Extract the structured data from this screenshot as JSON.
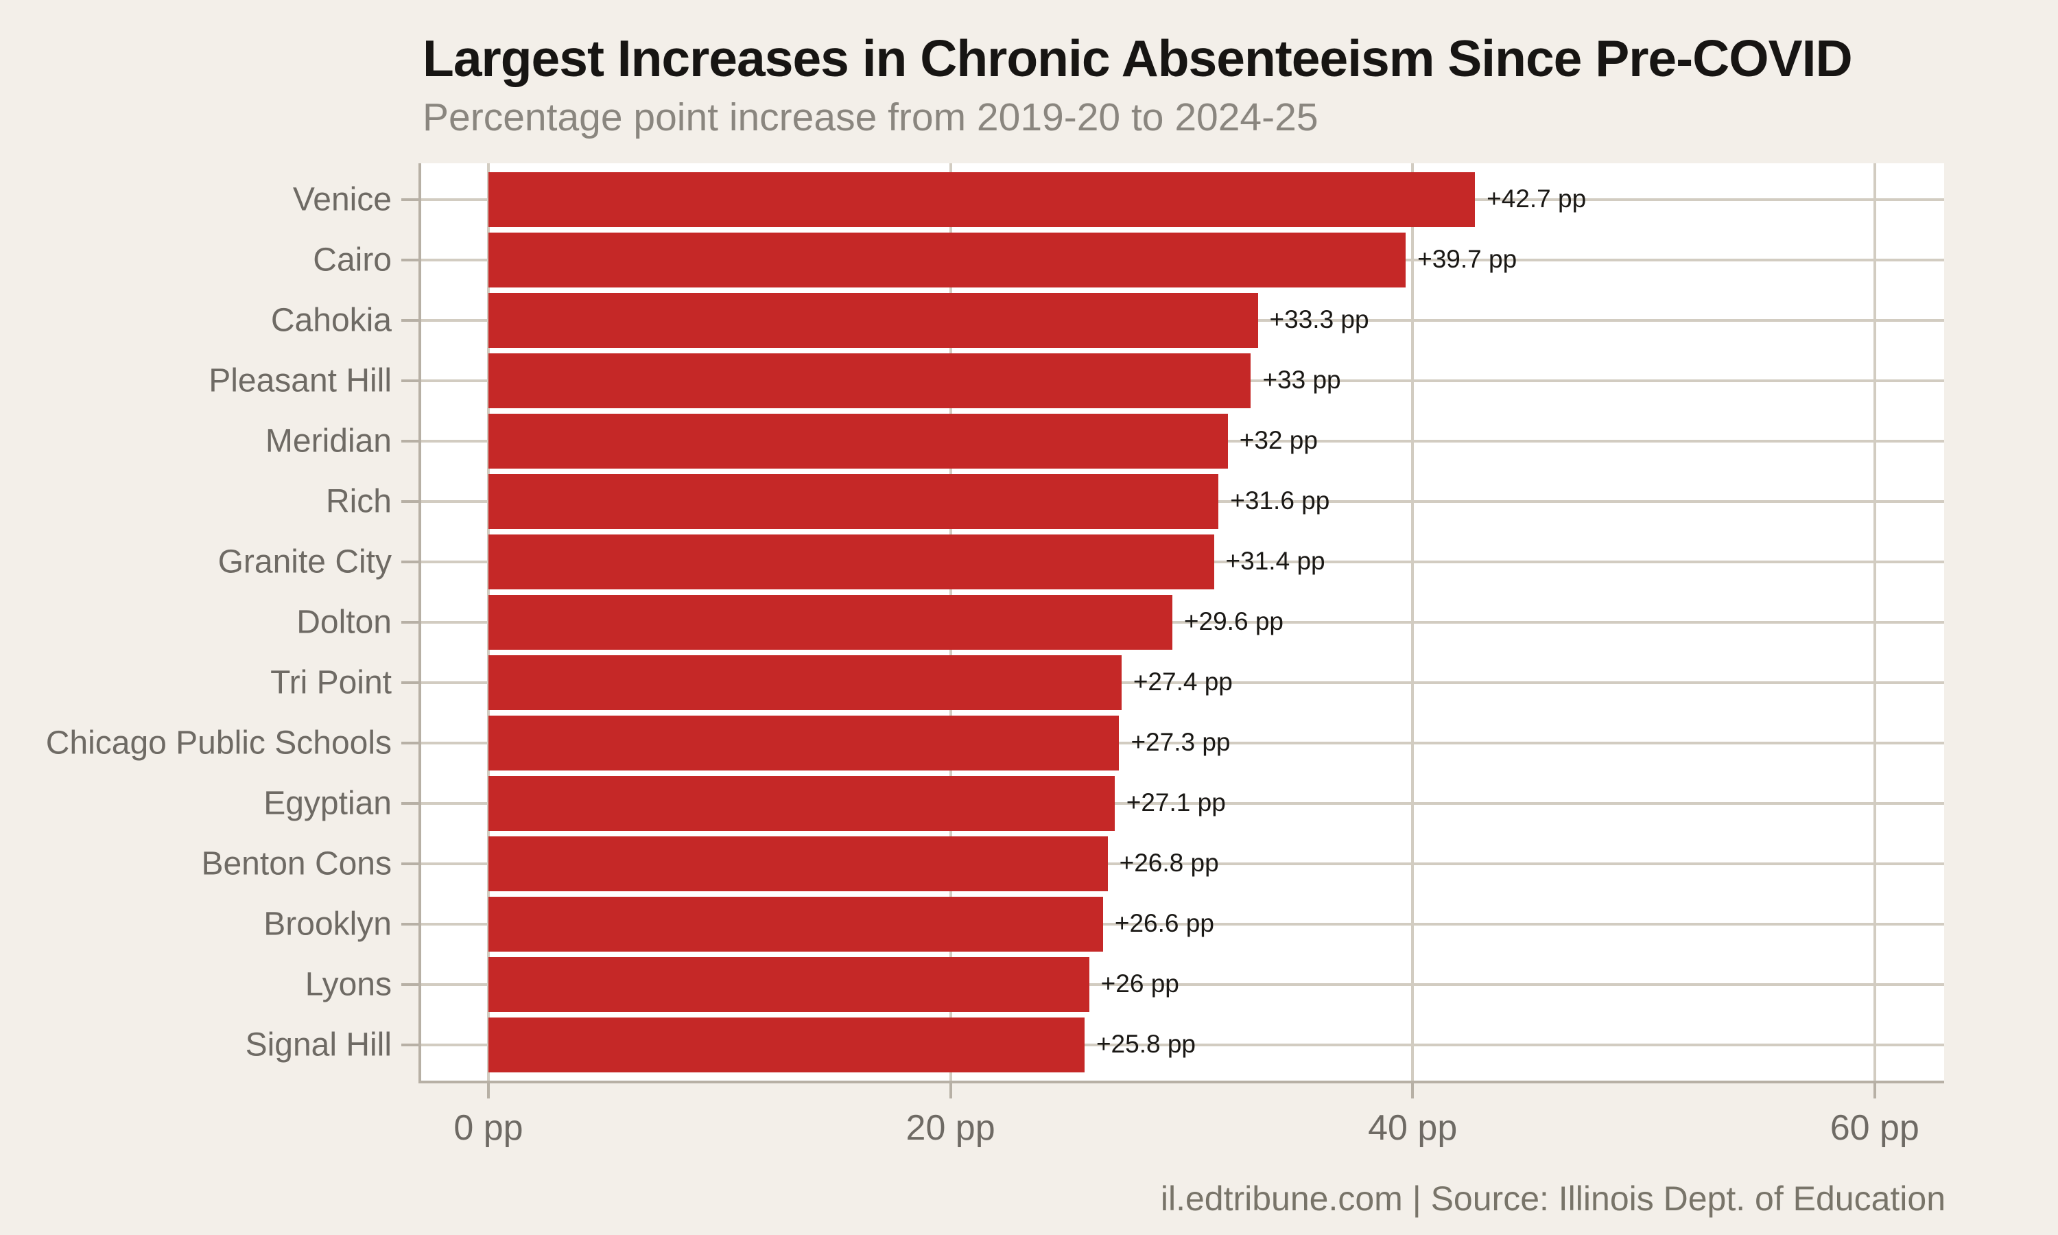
{
  "page": {
    "title": "Largest Increases in Chronic Absenteeism Since Pre-COVID",
    "subtitle": "Percentage point increase from 2019-20 to 2024-25",
    "footer_credit": "il.edtribune.com | Source: Illinois Dept. of Education"
  },
  "chart_data": {
    "type": "bar",
    "orientation": "horizontal",
    "title": "Largest Increases in Chronic Absenteeism Since Pre-COVID",
    "subtitle": "Percentage point increase from 2019-20 to 2024-25",
    "xlabel": "",
    "ylabel": "",
    "categories": [
      "Venice",
      "Cairo",
      "Cahokia",
      "Pleasant Hill",
      "Meridian",
      "Rich",
      "Granite City",
      "Dolton",
      "Tri Point",
      "Chicago Public Schools",
      "Egyptian",
      "Benton Cons",
      "Brooklyn",
      "Lyons",
      "Signal Hill"
    ],
    "values": [
      42.7,
      39.7,
      33.3,
      33,
      32,
      31.6,
      31.4,
      29.6,
      27.4,
      27.3,
      27.1,
      26.8,
      26.6,
      26,
      25.8
    ],
    "bar_labels": [
      "+42.7 pp",
      "+39.7 pp",
      "+33.3 pp",
      "+33 pp",
      "+32 pp",
      "+31.6 pp",
      "+31.4 pp",
      "+29.6 pp",
      "+27.4 pp",
      "+27.3 pp",
      "+27.1 pp",
      "+26.8 pp",
      "+26.6 pp",
      "+26 pp",
      "+25.8 pp"
    ],
    "x_ticks": [
      0,
      20,
      40,
      60
    ],
    "x_tick_labels": [
      "0 pp",
      "20 pp",
      "40 pp",
      "60 pp"
    ],
    "xlim": [
      0,
      63
    ],
    "grid": true,
    "legend": false,
    "colors": {
      "background": "#f3efe9",
      "panel": "#ffffff",
      "bar": "#c52827",
      "gridline": "#d2ccc1",
      "axis_line": "#b7b0a5",
      "title_text": "#171513",
      "subtitle_text": "#8a867f",
      "category_text": "#6e6a64",
      "value_text": "#1a1815",
      "axis_label_text": "#6e6a64",
      "footer_text": "#787469"
    }
  }
}
